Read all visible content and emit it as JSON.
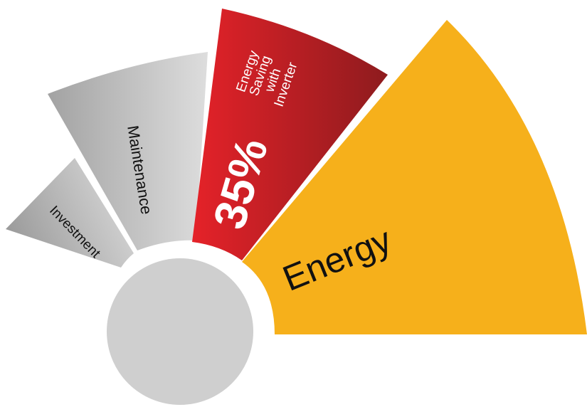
{
  "diagram": {
    "segments": [
      {
        "id": "investment",
        "label": "Investment",
        "color_from": "#9a9a9a",
        "color_to": "#dcdcdc"
      },
      {
        "id": "maintenance",
        "label": "Maintenance",
        "color_from": "#a3a3a3",
        "color_to": "#dedede"
      },
      {
        "id": "inverter",
        "label_lines": [
          "Energy",
          "Saving",
          "with",
          "Inverter"
        ],
        "percent": "35%",
        "color_from": "#e52229",
        "color_to": "#8e1b1e"
      },
      {
        "id": "energy",
        "label": "Energy",
        "color": "#f6b01b"
      }
    ],
    "hub_color": "#cfcfcf"
  }
}
